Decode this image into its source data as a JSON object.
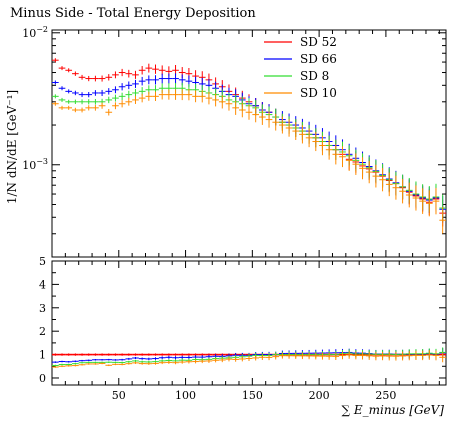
{
  "chart_data": {
    "type": "scatter",
    "title": "Minus Side - Total Energy Deposition",
    "xlabel": "∑ E_minus [GeV]",
    "ylabel": "1/N dN/dE [GeV⁻¹]",
    "xlim": [
      0,
      295
    ],
    "ylim": [
      0.0002,
      0.0105
    ],
    "yscale": "log",
    "y_tick_labels": [
      "10^-2",
      "10^-3"
    ],
    "x_tick_labels": [
      "50",
      "100",
      "150",
      "200",
      "250"
    ],
    "ratio_ylim": [
      -0.3,
      5
    ],
    "ratio_tick_labels": [
      "5",
      "4",
      "3",
      "2",
      "1",
      "0"
    ],
    "legend_position": "top-right",
    "grid": false,
    "x": [
      2.5,
      7.5,
      12.5,
      17.5,
      22.5,
      27.5,
      32.5,
      37.5,
      42.5,
      47.5,
      52.5,
      57.5,
      62.5,
      67.5,
      72.5,
      77.5,
      82.5,
      87.5,
      92.5,
      97.5,
      102.5,
      107.5,
      112.5,
      117.5,
      122.5,
      127.5,
      132.5,
      137.5,
      142.5,
      147.5,
      152.5,
      157.5,
      162.5,
      167.5,
      172.5,
      177.5,
      182.5,
      187.5,
      192.5,
      197.5,
      202.5,
      207.5,
      212.5,
      217.5,
      222.5,
      227.5,
      232.5,
      237.5,
      242.5,
      247.5,
      252.5,
      257.5,
      262.5,
      267.5,
      272.5,
      277.5,
      282.5,
      287.5,
      292.5
    ],
    "series": [
      {
        "name": "SD 52",
        "color": "#ff0000",
        "values": [
          0.0062,
          0.0054,
          0.0052,
          0.0049,
          0.0046,
          0.0045,
          0.0045,
          0.0045,
          0.0046,
          0.0048,
          0.005,
          0.0049,
          0.0048,
          0.0052,
          0.0054,
          0.0053,
          0.0052,
          0.0051,
          0.0052,
          0.005,
          0.0049,
          0.0047,
          0.0046,
          0.0044,
          0.0041,
          0.0039,
          0.0036,
          0.0034,
          0.0032,
          0.003,
          0.0028,
          0.0026,
          0.0025,
          0.0023,
          0.0021,
          0.002,
          0.0019,
          0.0018,
          0.0017,
          0.0016,
          0.0015,
          0.0014,
          0.0013,
          0.0012,
          0.0011,
          0.00105,
          0.00098,
          0.00093,
          0.00088,
          0.00082,
          0.00076,
          0.00072,
          0.00067,
          0.00062,
          0.00058,
          0.00055,
          0.00052,
          0.00055,
          0.00043
        ]
      },
      {
        "name": "SD 66",
        "color": "#0000ff",
        "values": [
          0.0042,
          0.0038,
          0.0036,
          0.0035,
          0.0034,
          0.0034,
          0.0035,
          0.0035,
          0.0036,
          0.0037,
          0.0039,
          0.004,
          0.0041,
          0.0043,
          0.0044,
          0.0044,
          0.0045,
          0.0045,
          0.0045,
          0.0044,
          0.0043,
          0.0042,
          0.0041,
          0.004,
          0.0038,
          0.0036,
          0.0034,
          0.0033,
          0.0031,
          0.0029,
          0.0028,
          0.0026,
          0.0025,
          0.0023,
          0.0022,
          0.0021,
          0.002,
          0.0019,
          0.0018,
          0.0017,
          0.0016,
          0.0015,
          0.0014,
          0.0013,
          0.0012,
          0.00112,
          0.00104,
          0.00097,
          0.0009,
          0.00084,
          0.00078,
          0.00073,
          0.00068,
          0.00063,
          0.00059,
          0.00056,
          0.00054,
          0.00056,
          0.00046
        ]
      },
      {
        "name": "SD 8",
        "color": "#33dd33",
        "values": [
          0.0033,
          0.0031,
          0.003,
          0.003,
          0.003,
          0.003,
          0.003,
          0.003,
          0.0031,
          0.0032,
          0.0033,
          0.0034,
          0.0035,
          0.0036,
          0.0037,
          0.0037,
          0.0038,
          0.0038,
          0.0038,
          0.0038,
          0.0037,
          0.0037,
          0.0036,
          0.0035,
          0.0034,
          0.0033,
          0.0031,
          0.003,
          0.0029,
          0.0028,
          0.0027,
          0.0025,
          0.0024,
          0.0023,
          0.0021,
          0.002,
          0.0019,
          0.0018,
          0.0017,
          0.0016,
          0.0015,
          0.0014,
          0.0013,
          0.00125,
          0.00117,
          0.00108,
          0.00101,
          0.00095,
          0.00089,
          0.00083,
          0.00077,
          0.00072,
          0.00068,
          0.00064,
          0.0006,
          0.00057,
          0.00055,
          0.00057,
          0.00047
        ]
      },
      {
        "name": "SD 10",
        "color": "#ff8c00",
        "values": [
          0.0029,
          0.0027,
          0.0027,
          0.0026,
          0.0026,
          0.0027,
          0.0027,
          0.0028,
          0.0025,
          0.0028,
          0.0029,
          0.003,
          0.0031,
          0.0032,
          0.0033,
          0.0033,
          0.0034,
          0.0034,
          0.0034,
          0.0034,
          0.0034,
          0.0033,
          0.0033,
          0.0032,
          0.0031,
          0.003,
          0.0029,
          0.0027,
          0.0026,
          0.0025,
          0.0024,
          0.0023,
          0.0022,
          0.0021,
          0.002,
          0.0019,
          0.0018,
          0.0017,
          0.0016,
          0.0015,
          0.0014,
          0.0013,
          0.0012,
          0.00115,
          0.00108,
          0.00101,
          0.00094,
          0.00088,
          0.00082,
          0.00077,
          0.00071,
          0.00067,
          0.00063,
          0.00059,
          0.00056,
          0.00053,
          0.00051,
          0.00053,
          0.00038
        ]
      }
    ],
    "ratio_series": [
      {
        "name": "SD 52",
        "color": "#ff0000",
        "values": "reference"
      },
      {
        "name": "SD 66",
        "color": "#0000ff"
      },
      {
        "name": "SD 8",
        "color": "#33dd33"
      },
      {
        "name": "SD 10",
        "color": "#ff8c00"
      }
    ]
  }
}
